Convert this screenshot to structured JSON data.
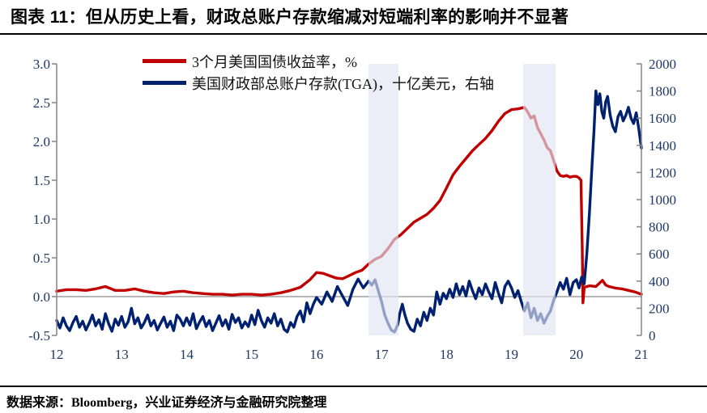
{
  "title": "图表 11：但从历史上看，财政总账户存款缩减对短端利率的影响并不显著",
  "source_note": "数据来源：Bloomberg，兴业证券经济与金融研究院整理",
  "colors": {
    "yield_line": "#C00000",
    "tga_line": "#002070",
    "axis": "#8a8a8a",
    "tick_label": "#1F3864",
    "band_fill": "rgba(225,229,243,0.65)",
    "zero_line": "#8a8a8a"
  },
  "legend": [
    {
      "label": "3个月美国国债收益率，%",
      "color": "#C00000"
    },
    {
      "label": "美国财政部总账户存款(TGA)，十亿美元，右轴",
      "color": "#002070"
    }
  ],
  "chart_data": {
    "type": "line",
    "title": "",
    "xlabel": "",
    "ylabel_left": "%",
    "ylabel_right": "十亿美元",
    "grid": false,
    "legend_position": "top-left",
    "x": {
      "min": 12,
      "max": 21,
      "ticks": [
        12,
        13,
        14,
        15,
        16,
        17,
        18,
        19,
        20,
        21
      ],
      "tick_labels": [
        "12",
        "13",
        "14",
        "15",
        "16",
        "17",
        "18",
        "19",
        "20",
        "21"
      ]
    },
    "y_left": {
      "min": -0.5,
      "max": 3.0,
      "ticks": [
        3.0,
        2.5,
        2.0,
        1.5,
        1.0,
        0.5,
        0.0,
        -0.5
      ],
      "tick_labels": [
        "3.0",
        "2.5",
        "2.0",
        "1.5",
        "1.0",
        "0.5",
        "0.0",
        "-0.5"
      ]
    },
    "y_right": {
      "min": 0,
      "max": 2000,
      "ticks": [
        2000,
        1800,
        1600,
        1400,
        1200,
        1000,
        800,
        600,
        400,
        200,
        0
      ],
      "tick_labels": [
        "2000",
        "1800",
        "1600",
        "1400",
        "1200",
        "1000",
        "800",
        "600",
        "400",
        "200",
        "0"
      ]
    },
    "shaded_bands": [
      {
        "x_start": 16.8,
        "x_end": 17.26
      },
      {
        "x_start": 19.18,
        "x_end": 19.68
      }
    ],
    "zero_line_left_value": 0.0,
    "series": [
      {
        "name": "3个月美国国债收益率，%",
        "axis": "left",
        "color": "#C00000",
        "points": [
          [
            12.0,
            0.07
          ],
          [
            12.15,
            0.09
          ],
          [
            12.3,
            0.09
          ],
          [
            12.45,
            0.08
          ],
          [
            12.6,
            0.1
          ],
          [
            12.75,
            0.13
          ],
          [
            12.9,
            0.08
          ],
          [
            13.05,
            0.08
          ],
          [
            13.2,
            0.1
          ],
          [
            13.35,
            0.07
          ],
          [
            13.5,
            0.05
          ],
          [
            13.65,
            0.04
          ],
          [
            13.8,
            0.06
          ],
          [
            13.95,
            0.07
          ],
          [
            14.1,
            0.05
          ],
          [
            14.25,
            0.04
          ],
          [
            14.4,
            0.03
          ],
          [
            14.55,
            0.03
          ],
          [
            14.7,
            0.02
          ],
          [
            14.85,
            0.03
          ],
          [
            15.0,
            0.03
          ],
          [
            15.15,
            0.02
          ],
          [
            15.3,
            0.03
          ],
          [
            15.45,
            0.05
          ],
          [
            15.6,
            0.08
          ],
          [
            15.75,
            0.12
          ],
          [
            15.9,
            0.22
          ],
          [
            16.0,
            0.31
          ],
          [
            16.1,
            0.3
          ],
          [
            16.2,
            0.27
          ],
          [
            16.3,
            0.24
          ],
          [
            16.4,
            0.23
          ],
          [
            16.5,
            0.27
          ],
          [
            16.6,
            0.31
          ],
          [
            16.7,
            0.34
          ],
          [
            16.8,
            0.42
          ],
          [
            16.9,
            0.48
          ],
          [
            17.0,
            0.52
          ],
          [
            17.1,
            0.62
          ],
          [
            17.2,
            0.74
          ],
          [
            17.3,
            0.8
          ],
          [
            17.4,
            0.88
          ],
          [
            17.5,
            0.96
          ],
          [
            17.6,
            1.01
          ],
          [
            17.7,
            1.06
          ],
          [
            17.8,
            1.14
          ],
          [
            17.9,
            1.24
          ],
          [
            18.0,
            1.4
          ],
          [
            18.1,
            1.57
          ],
          [
            18.2,
            1.68
          ],
          [
            18.3,
            1.78
          ],
          [
            18.4,
            1.88
          ],
          [
            18.5,
            1.96
          ],
          [
            18.6,
            2.04
          ],
          [
            18.7,
            2.14
          ],
          [
            18.8,
            2.26
          ],
          [
            18.9,
            2.36
          ],
          [
            19.0,
            2.41
          ],
          [
            19.1,
            2.42
          ],
          [
            19.2,
            2.44
          ],
          [
            19.25,
            2.38
          ],
          [
            19.3,
            2.3
          ],
          [
            19.35,
            2.33
          ],
          [
            19.4,
            2.18
          ],
          [
            19.45,
            2.1
          ],
          [
            19.5,
            2.02
          ],
          [
            19.55,
            1.92
          ],
          [
            19.6,
            1.88
          ],
          [
            19.65,
            1.75
          ],
          [
            19.7,
            1.62
          ],
          [
            19.75,
            1.56
          ],
          [
            19.8,
            1.55
          ],
          [
            19.85,
            1.56
          ],
          [
            19.9,
            1.54
          ],
          [
            19.95,
            1.55
          ],
          [
            20.0,
            1.55
          ],
          [
            20.04,
            1.53
          ],
          [
            20.07,
            1.5
          ],
          [
            20.09,
            0.6
          ],
          [
            20.1,
            -0.08
          ],
          [
            20.12,
            0.12
          ],
          [
            20.2,
            0.14
          ],
          [
            20.3,
            0.13
          ],
          [
            20.4,
            0.21
          ],
          [
            20.45,
            0.15
          ],
          [
            20.5,
            0.13
          ],
          [
            20.6,
            0.11
          ],
          [
            20.7,
            0.1
          ],
          [
            20.8,
            0.08
          ],
          [
            20.9,
            0.06
          ],
          [
            21.0,
            0.03
          ]
        ]
      },
      {
        "name": "美国财政部总账户存款(TGA)，十亿美元，右轴",
        "axis": "right",
        "color": "#002070",
        "points": [
          [
            12.0,
            110
          ],
          [
            12.05,
            55
          ],
          [
            12.1,
            130
          ],
          [
            12.15,
            70
          ],
          [
            12.2,
            35
          ],
          [
            12.25,
            95
          ],
          [
            12.3,
            140
          ],
          [
            12.35,
            60
          ],
          [
            12.4,
            105
          ],
          [
            12.45,
            40
          ],
          [
            12.5,
            90
          ],
          [
            12.55,
            150
          ],
          [
            12.6,
            70
          ],
          [
            12.65,
            115
          ],
          [
            12.7,
            45
          ],
          [
            12.75,
            160
          ],
          [
            12.8,
            85
          ],
          [
            12.85,
            30
          ],
          [
            12.9,
            120
          ],
          [
            12.95,
            75
          ],
          [
            13.0,
            140
          ],
          [
            13.05,
            60
          ],
          [
            13.1,
            100
          ],
          [
            13.15,
            200
          ],
          [
            13.2,
            85
          ],
          [
            13.25,
            130
          ],
          [
            13.3,
            55
          ],
          [
            13.35,
            95
          ],
          [
            13.4,
            150
          ],
          [
            13.45,
            70
          ],
          [
            13.5,
            110
          ],
          [
            13.55,
            40
          ],
          [
            13.6,
            90
          ],
          [
            13.65,
            135
          ],
          [
            13.7,
            60
          ],
          [
            13.75,
            105
          ],
          [
            13.8,
            35
          ],
          [
            13.85,
            150
          ],
          [
            13.9,
            120
          ],
          [
            13.95,
            70
          ],
          [
            14.0,
            130
          ],
          [
            14.05,
            75
          ],
          [
            14.1,
            160
          ],
          [
            14.15,
            50
          ],
          [
            14.2,
            100
          ],
          [
            14.25,
            140
          ],
          [
            14.3,
            65
          ],
          [
            14.35,
            110
          ],
          [
            14.4,
            35
          ],
          [
            14.45,
            90
          ],
          [
            14.5,
            145
          ],
          [
            14.55,
            70
          ],
          [
            14.6,
            115
          ],
          [
            14.65,
            45
          ],
          [
            14.7,
            155
          ],
          [
            14.75,
            95
          ],
          [
            14.8,
            130
          ],
          [
            14.85,
            55
          ],
          [
            14.9,
            100
          ],
          [
            14.95,
            65
          ],
          [
            15.0,
            150
          ],
          [
            15.05,
            80
          ],
          [
            15.1,
            185
          ],
          [
            15.15,
            110
          ],
          [
            15.2,
            60
          ],
          [
            15.25,
            130
          ],
          [
            15.3,
            90
          ],
          [
            15.35,
            160
          ],
          [
            15.4,
            70
          ],
          [
            15.45,
            120
          ],
          [
            15.5,
            45
          ],
          [
            15.55,
            25
          ],
          [
            15.6,
            95
          ],
          [
            15.65,
            60
          ],
          [
            15.7,
            140
          ],
          [
            15.75,
            180
          ],
          [
            15.8,
            100
          ],
          [
            15.85,
            240
          ],
          [
            15.9,
            160
          ],
          [
            15.95,
            230
          ],
          [
            16.0,
            280
          ],
          [
            16.08,
            230
          ],
          [
            16.16,
            320
          ],
          [
            16.24,
            250
          ],
          [
            16.32,
            360
          ],
          [
            16.4,
            290
          ],
          [
            16.48,
            220
          ],
          [
            16.56,
            340
          ],
          [
            16.64,
            415
          ],
          [
            16.72,
            350
          ],
          [
            16.8,
            400
          ],
          [
            16.85,
            370
          ],
          [
            16.9,
            410
          ],
          [
            16.95,
            330
          ],
          [
            17.0,
            250
          ],
          [
            17.05,
            150
          ],
          [
            17.1,
            90
          ],
          [
            17.15,
            40
          ],
          [
            17.2,
            25
          ],
          [
            17.25,
            80
          ],
          [
            17.28,
            160
          ],
          [
            17.32,
            230
          ],
          [
            17.36,
            150
          ],
          [
            17.4,
            90
          ],
          [
            17.45,
            45
          ],
          [
            17.5,
            30
          ],
          [
            17.55,
            120
          ],
          [
            17.6,
            70
          ],
          [
            17.65,
            170
          ],
          [
            17.7,
            110
          ],
          [
            17.75,
            200
          ],
          [
            17.8,
            150
          ],
          [
            17.85,
            320
          ],
          [
            17.9,
            230
          ],
          [
            17.95,
            310
          ],
          [
            18.0,
            270
          ],
          [
            18.05,
            340
          ],
          [
            18.1,
            280
          ],
          [
            18.15,
            380
          ],
          [
            18.2,
            300
          ],
          [
            18.25,
            360
          ],
          [
            18.3,
            290
          ],
          [
            18.35,
            400
          ],
          [
            18.4,
            330
          ],
          [
            18.45,
            270
          ],
          [
            18.5,
            350
          ],
          [
            18.55,
            300
          ],
          [
            18.6,
            380
          ],
          [
            18.65,
            320
          ],
          [
            18.7,
            270
          ],
          [
            18.75,
            390
          ],
          [
            18.8,
            310
          ],
          [
            18.85,
            240
          ],
          [
            18.9,
            360
          ],
          [
            18.95,
            400
          ],
          [
            19.0,
            350
          ],
          [
            19.05,
            280
          ],
          [
            19.1,
            330
          ],
          [
            19.15,
            250
          ],
          [
            19.2,
            180
          ],
          [
            19.25,
            240
          ],
          [
            19.3,
            130
          ],
          [
            19.35,
            200
          ],
          [
            19.4,
            110
          ],
          [
            19.45,
            160
          ],
          [
            19.5,
            90
          ],
          [
            19.55,
            140
          ],
          [
            19.6,
            180
          ],
          [
            19.65,
            260
          ],
          [
            19.7,
            320
          ],
          [
            19.75,
            390
          ],
          [
            19.8,
            340
          ],
          [
            19.85,
            420
          ],
          [
            19.9,
            300
          ],
          [
            19.95,
            390
          ],
          [
            20.0,
            410
          ],
          [
            20.04,
            350
          ],
          [
            20.08,
            430
          ],
          [
            20.12,
            380
          ],
          [
            20.16,
            600
          ],
          [
            20.2,
            900
          ],
          [
            20.24,
            1250
          ],
          [
            20.27,
            1500
          ],
          [
            20.3,
            1800
          ],
          [
            20.33,
            1700
          ],
          [
            20.36,
            1780
          ],
          [
            20.39,
            1650
          ],
          [
            20.42,
            1600
          ],
          [
            20.45,
            1720
          ],
          [
            20.48,
            1760
          ],
          [
            20.52,
            1620
          ],
          [
            20.56,
            1540
          ],
          [
            20.6,
            1500
          ],
          [
            20.64,
            1610
          ],
          [
            20.68,
            1650
          ],
          [
            20.72,
            1580
          ],
          [
            20.76,
            1620
          ],
          [
            20.8,
            1680
          ],
          [
            20.84,
            1600
          ],
          [
            20.88,
            1560
          ],
          [
            20.92,
            1640
          ],
          [
            20.96,
            1520
          ],
          [
            21.0,
            1380
          ]
        ]
      }
    ]
  }
}
